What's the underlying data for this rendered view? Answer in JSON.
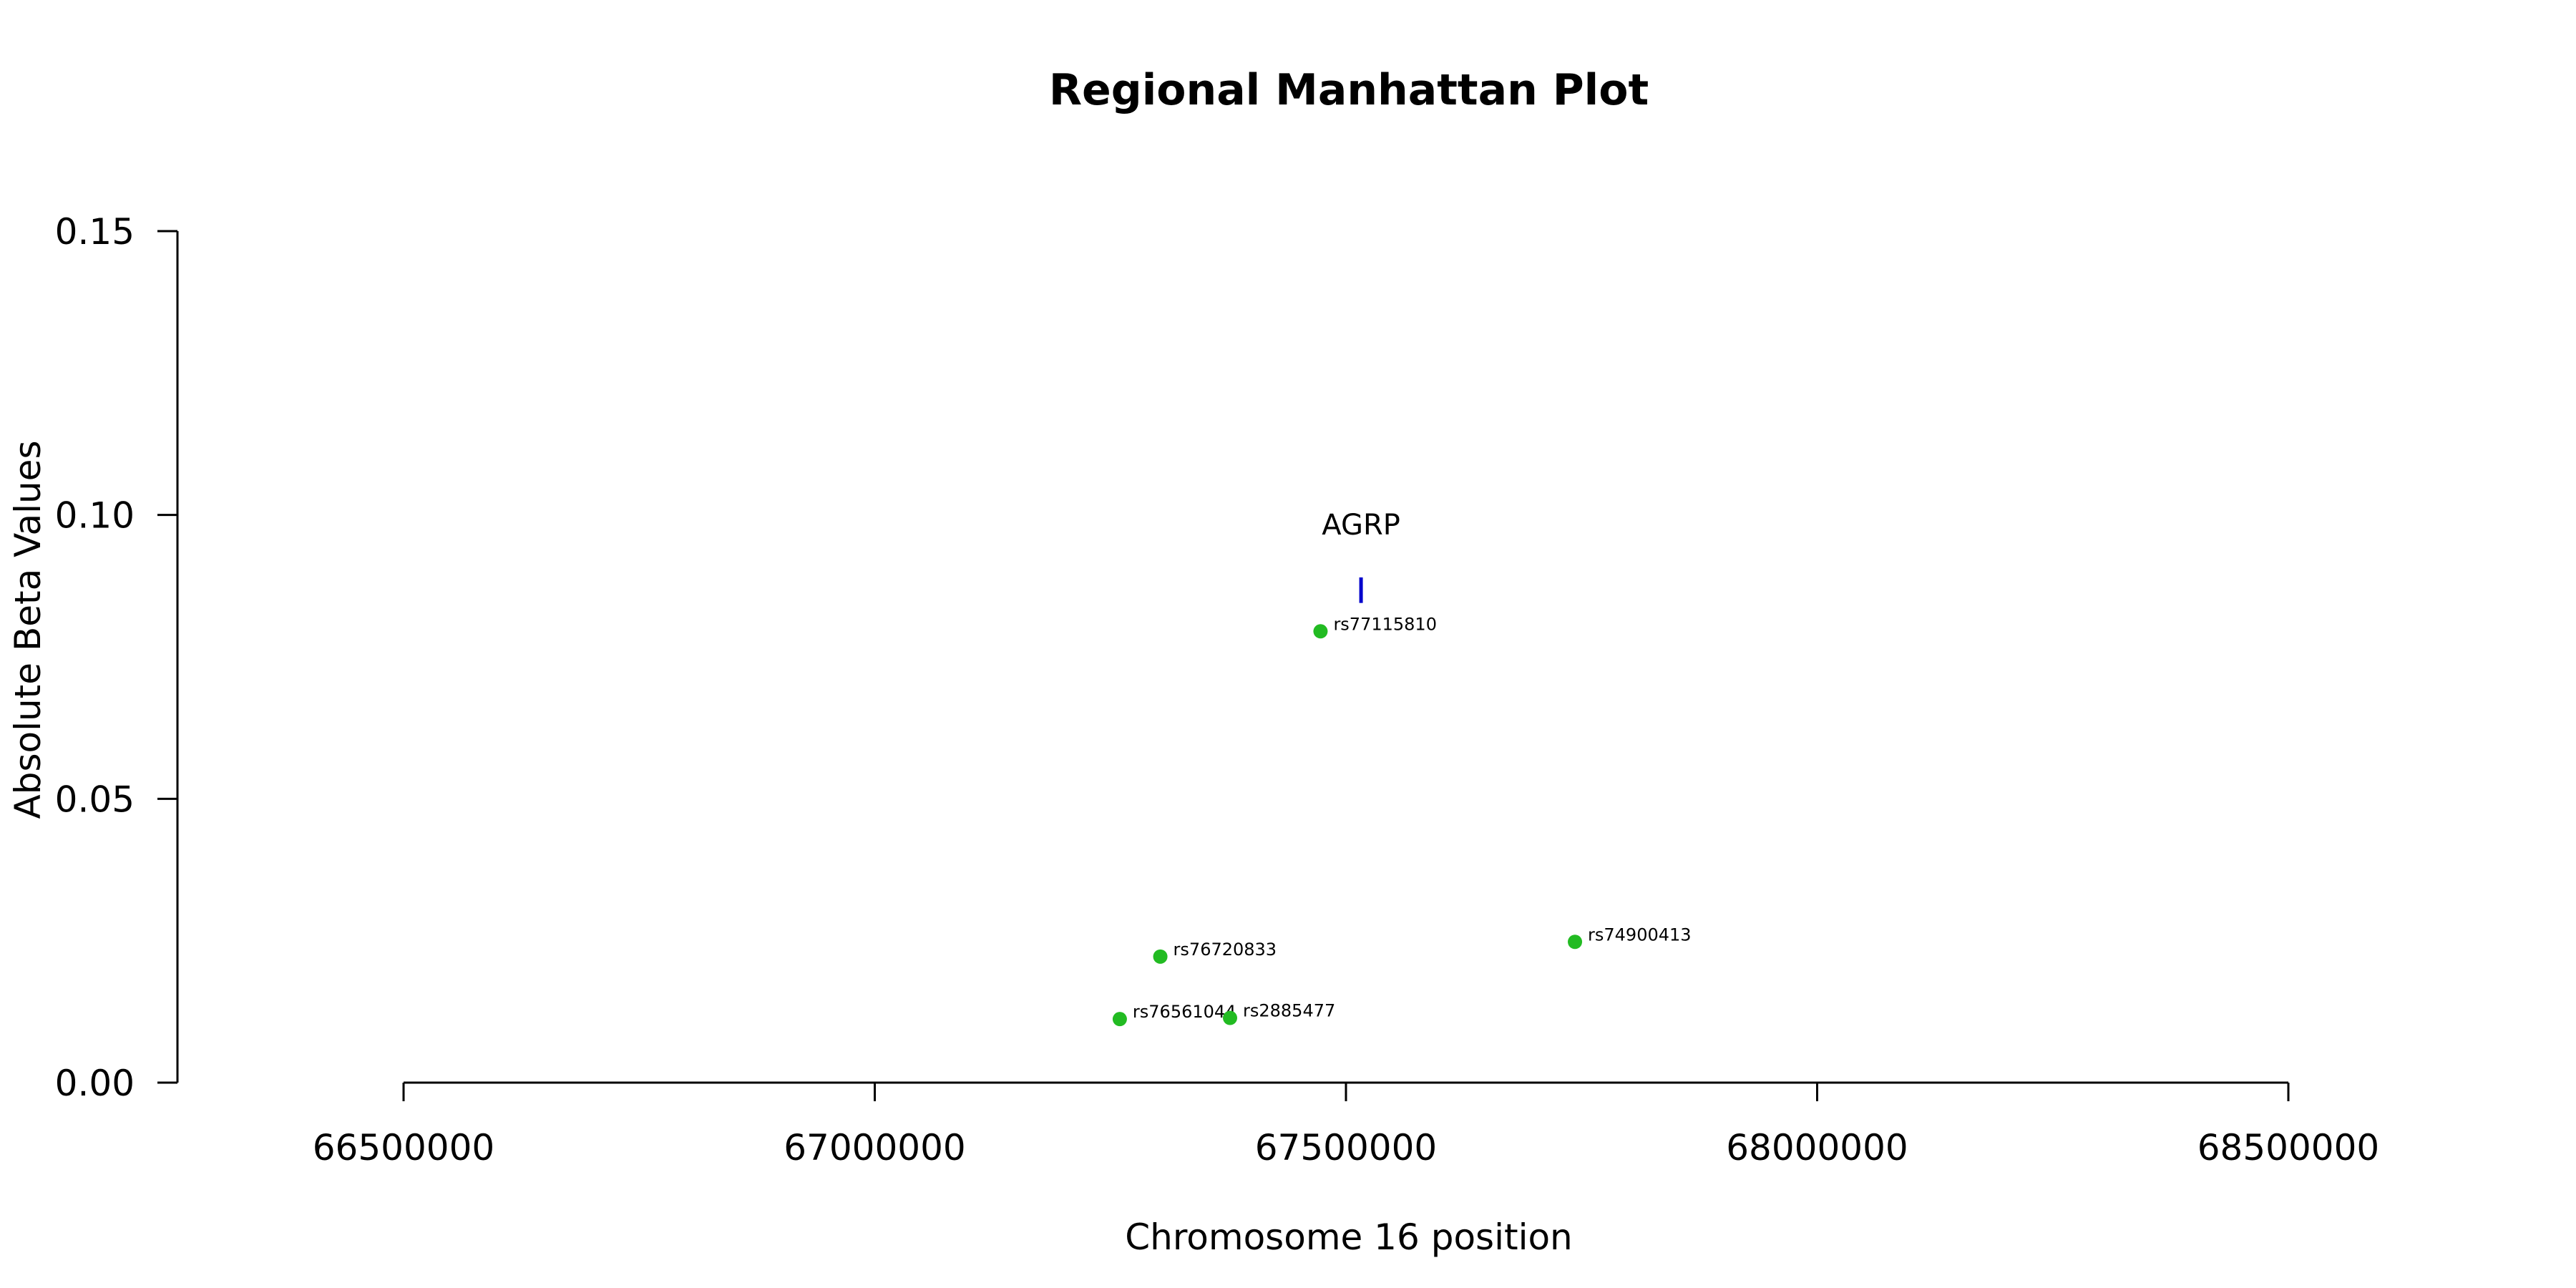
{
  "chart_data": {
    "type": "scatter",
    "title": "Regional Manhattan Plot",
    "xlabel": "Chromosome 16 position",
    "ylabel": "Absolute Beta Values",
    "xlim": [
      66380000,
      68700000
    ],
    "ylim": [
      0,
      0.15
    ],
    "x_ticks": [
      66500000,
      67000000,
      67500000,
      68000000,
      68500000
    ],
    "x_tick_labels": [
      "66500000",
      "67000000",
      "67500000",
      "68000000",
      "68500000"
    ],
    "y_ticks": [
      0,
      0.05,
      0.1,
      0.15
    ],
    "y_tick_labels": [
      "0.00",
      "0.05",
      "0.10",
      "0.15"
    ],
    "point_color": "#22bb22",
    "gene_color": "#0000cc",
    "grid": false,
    "points": [
      {
        "label": "rs77115810",
        "x": 67473000,
        "y": 0.0795
      },
      {
        "label": "rs76720833",
        "x": 67303000,
        "y": 0.0222
      },
      {
        "label": "rs76561044",
        "x": 67260000,
        "y": 0.0112
      },
      {
        "label": "rs2885477",
        "x": 67377000,
        "y": 0.0114
      },
      {
        "label": "rs74900413",
        "x": 67743000,
        "y": 0.0248
      }
    ],
    "genes": [
      {
        "name": "AGRP",
        "x": 67516000,
        "y_low": 0.0845,
        "y_high": 0.089
      }
    ]
  }
}
